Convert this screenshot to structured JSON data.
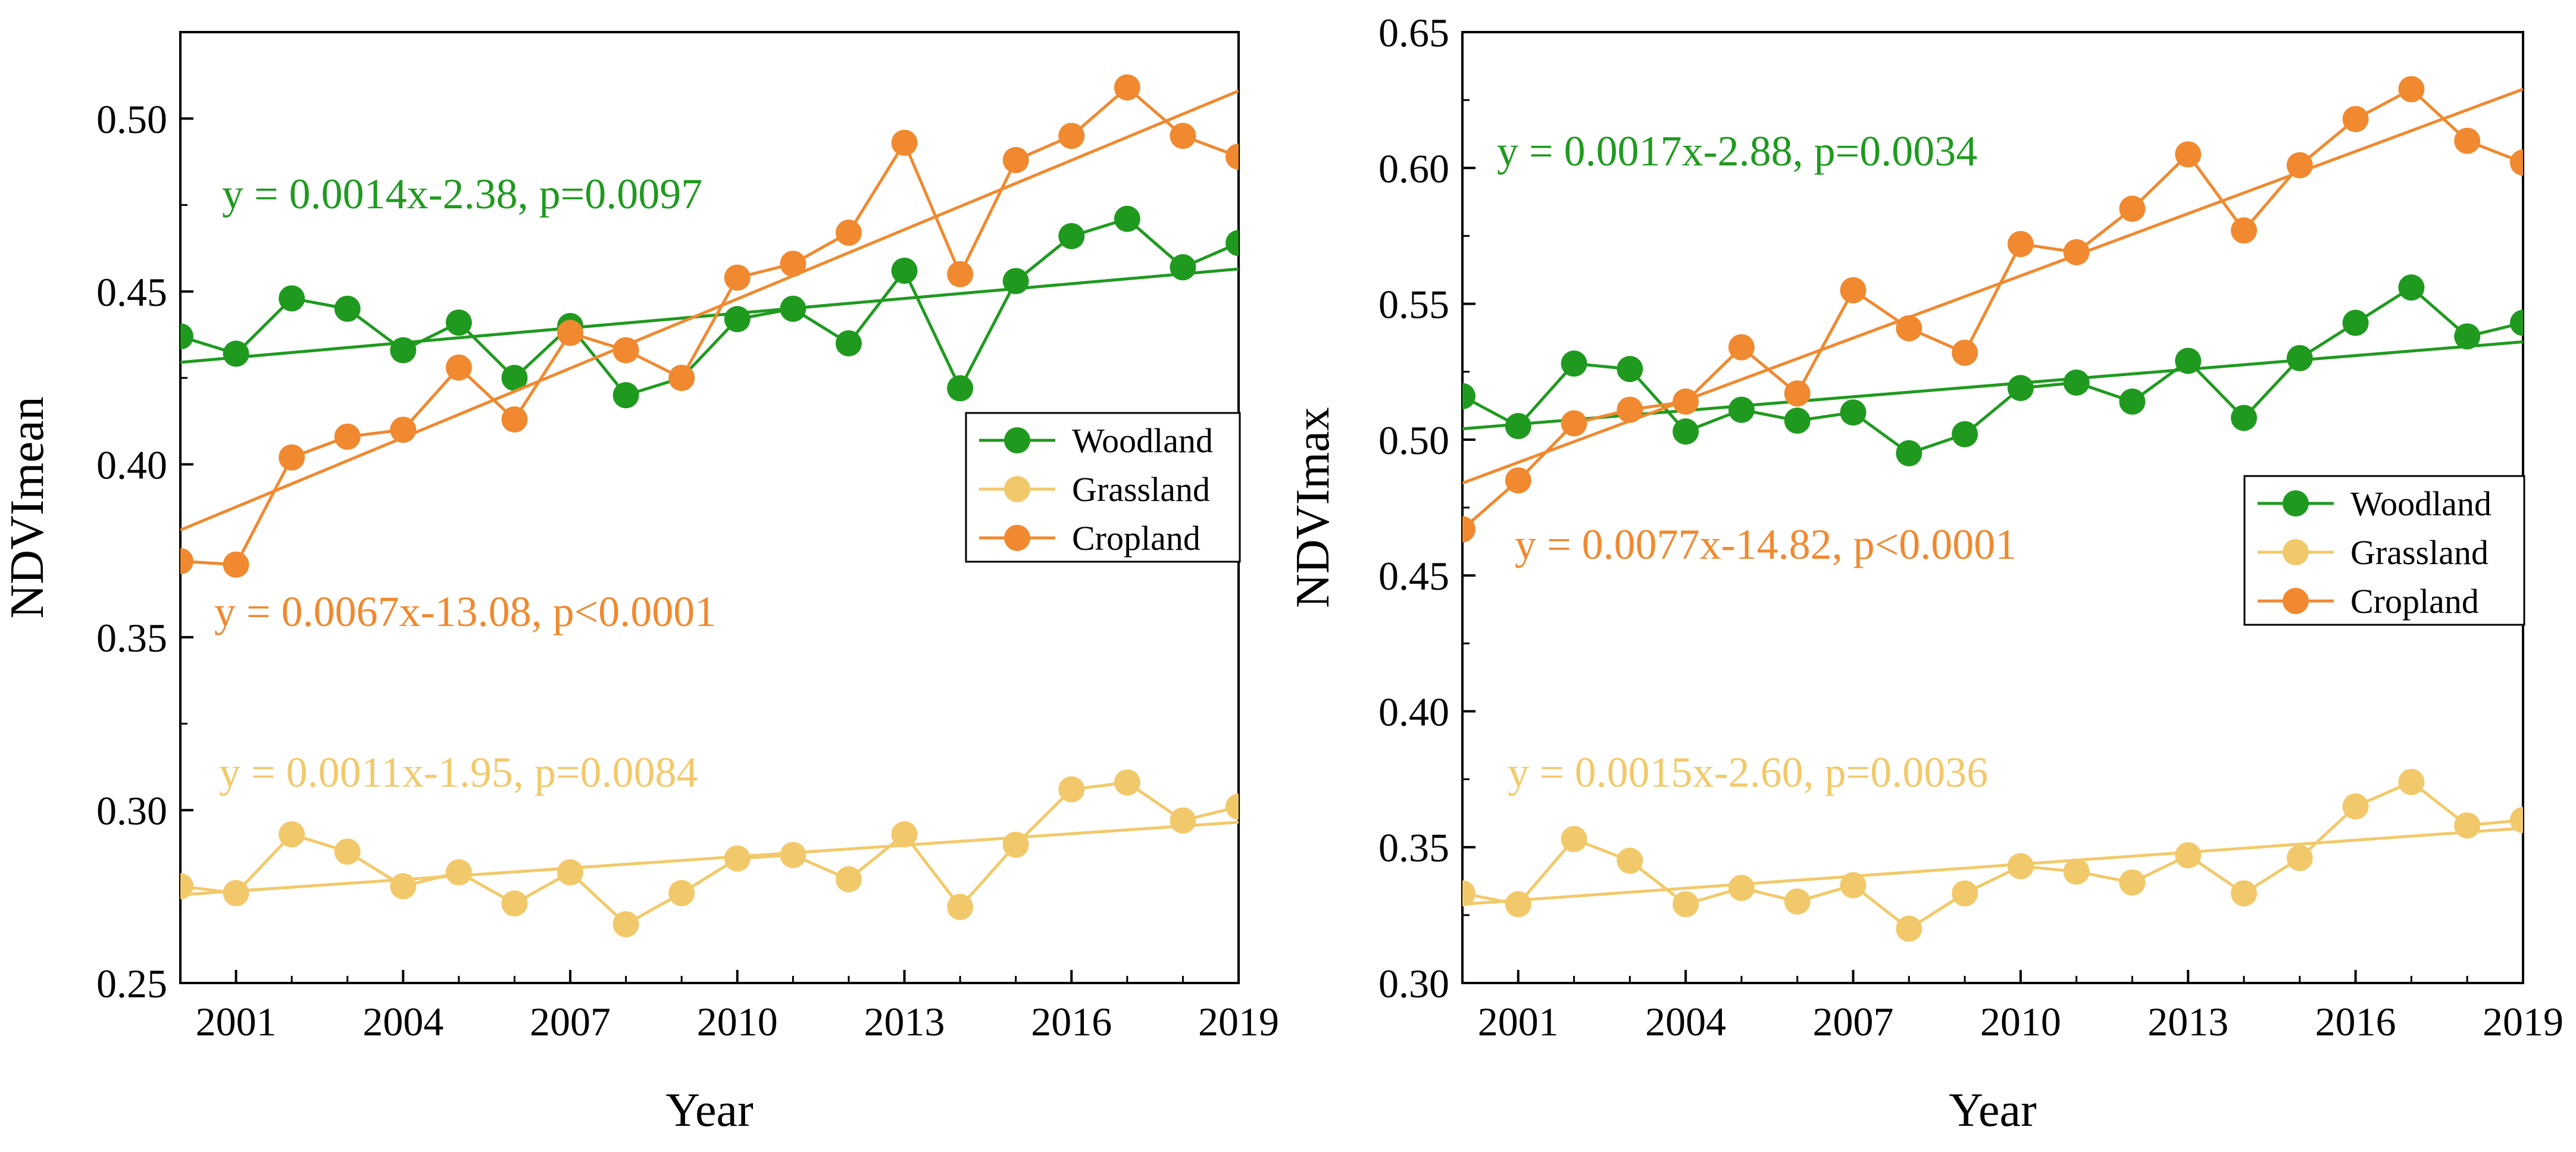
{
  "chart_data": [
    {
      "type": "line",
      "ylabel": "NDVImean",
      "xlabel": "Year",
      "xlim": [
        2000,
        2019
      ],
      "ylim": [
        0.25,
        0.525
      ],
      "xticks": [
        2001,
        2004,
        2007,
        2010,
        2013,
        2016,
        2019
      ],
      "yticks": [
        0.25,
        0.3,
        0.35,
        0.4,
        0.45,
        0.5
      ],
      "ytick_labels": [
        "0.25",
        "0.30",
        "0.35",
        "0.40",
        "0.45",
        "0.50"
      ],
      "x": [
        2000,
        2001,
        2002,
        2003,
        2004,
        2005,
        2006,
        2007,
        2008,
        2009,
        2010,
        2011,
        2012,
        2013,
        2014,
        2015,
        2016,
        2017,
        2018,
        2019
      ],
      "legend": [
        "Woodland",
        "Grassland",
        "Cropland"
      ],
      "series": [
        {
          "name": "Woodland",
          "color": "#1f9a1f",
          "values": [
            0.437,
            0.432,
            0.448,
            0.445,
            0.433,
            0.441,
            0.425,
            0.44,
            0.42,
            0.425,
            0.442,
            0.445,
            0.435,
            0.456,
            0.422,
            0.453,
            0.466,
            0.471,
            0.457,
            0.464
          ],
          "trend": [
            0.4295,
            0.4565
          ],
          "equation": "y = 0.0014x-2.38, p=0.0097"
        },
        {
          "name": "Grassland",
          "color": "#f2c96a",
          "values": [
            0.278,
            0.276,
            0.293,
            0.288,
            0.278,
            0.282,
            0.273,
            0.282,
            0.267,
            0.276,
            0.286,
            0.287,
            0.28,
            0.293,
            0.272,
            0.29,
            0.306,
            0.308,
            0.297,
            0.301
          ],
          "trend": [
            0.2755,
            0.2965
          ],
          "equation": "y = 0.0011x-1.95, p=0.0084"
        },
        {
          "name": "Cropland",
          "color": "#f0892f",
          "values": [
            0.372,
            0.371,
            0.402,
            0.408,
            0.41,
            0.428,
            0.413,
            0.438,
            0.433,
            0.425,
            0.454,
            0.458,
            0.467,
            0.493,
            0.455,
            0.488,
            0.495,
            0.509,
            0.495,
            0.489
          ],
          "trend": [
            0.381,
            0.508
          ],
          "equation": "y = 0.0067x-13.08, p<0.0001"
        }
      ]
    },
    {
      "type": "line",
      "ylabel": "NDVImax",
      "xlabel": "Year",
      "xlim": [
        2000,
        2019
      ],
      "ylim": [
        0.3,
        0.65
      ],
      "xticks": [
        2001,
        2004,
        2007,
        2010,
        2013,
        2016,
        2019
      ],
      "yticks": [
        0.3,
        0.35,
        0.4,
        0.45,
        0.5,
        0.55,
        0.6,
        0.65
      ],
      "ytick_labels": [
        "0.30",
        "0.35",
        "0.40",
        "0.45",
        "0.50",
        "0.55",
        "0.60",
        "0.65"
      ],
      "x": [
        2000,
        2001,
        2002,
        2003,
        2004,
        2005,
        2006,
        2007,
        2008,
        2009,
        2010,
        2011,
        2012,
        2013,
        2014,
        2015,
        2016,
        2017,
        2018,
        2019
      ],
      "legend": [
        "Woodland",
        "Grassland",
        "Cropland"
      ],
      "series": [
        {
          "name": "Woodland",
          "color": "#1f9a1f",
          "values": [
            0.516,
            0.505,
            0.528,
            0.526,
            0.503,
            0.511,
            0.507,
            0.51,
            0.495,
            0.502,
            0.519,
            0.521,
            0.514,
            0.529,
            0.508,
            0.53,
            0.543,
            0.556,
            0.538,
            0.543
          ],
          "trend": [
            0.504,
            0.536
          ],
          "equation": "y = 0.0017x-2.88, p=0.0034"
        },
        {
          "name": "Grassland",
          "color": "#f2c96a",
          "values": [
            0.333,
            0.329,
            0.353,
            0.345,
            0.329,
            0.335,
            0.33,
            0.336,
            0.32,
            0.333,
            0.343,
            0.341,
            0.337,
            0.347,
            0.333,
            0.346,
            0.365,
            0.374,
            0.358,
            0.36
          ],
          "trend": [
            0.329,
            0.357
          ],
          "equation": "y = 0.0015x-2.60, p=0.0036"
        },
        {
          "name": "Cropland",
          "color": "#f0892f",
          "values": [
            0.467,
            0.485,
            0.506,
            0.511,
            0.514,
            0.534,
            0.517,
            0.555,
            0.541,
            0.532,
            0.572,
            0.569,
            0.585,
            0.605,
            0.577,
            0.601,
            0.618,
            0.629,
            0.61,
            0.602
          ],
          "trend": [
            0.484,
            0.629
          ],
          "equation": "y = 0.0077x-14.82, p<0.0001"
        }
      ]
    }
  ]
}
